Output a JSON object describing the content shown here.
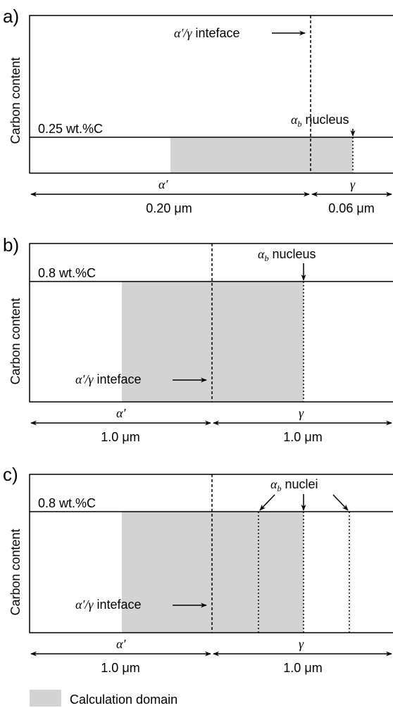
{
  "panels": [
    {
      "label": "a)",
      "y_axis_label": "Carbon content",
      "level_label": "0.25 wt.%C",
      "interface_label_sym": "α′/γ",
      "interface_label_text": " inteface",
      "nucleus_sym": "α",
      "nucleus_sub": "b",
      "nucleus_text": " nucleus",
      "phase_left": "α′",
      "phase_right": "γ",
      "width_left": "0.20 μm",
      "width_right": "0.06 μm"
    },
    {
      "label": "b)",
      "y_axis_label": "Carbon content",
      "level_label": "0.8 wt.%C",
      "interface_label_sym": "α′/γ",
      "interface_label_text": " inteface",
      "nucleus_sym": "α",
      "nucleus_sub": "b",
      "nucleus_text": " nucleus",
      "phase_left": "α′",
      "phase_right": "γ",
      "width_left": "1.0 μm",
      "width_right": "1.0 μm"
    },
    {
      "label": "c)",
      "y_axis_label": "Carbon content",
      "level_label": "0.8 wt.%C",
      "interface_label_sym": "α′/γ",
      "interface_label_text": " inteface",
      "nucleus_sym": "α",
      "nucleus_sub": "b",
      "nucleus_text": " nuclei",
      "phase_left": "α′",
      "phase_right": "γ",
      "width_left": "1.0 μm",
      "width_right": "1.0 μm"
    }
  ],
  "legend": {
    "label": "Calculation domain",
    "color": "#d3d3d3"
  }
}
